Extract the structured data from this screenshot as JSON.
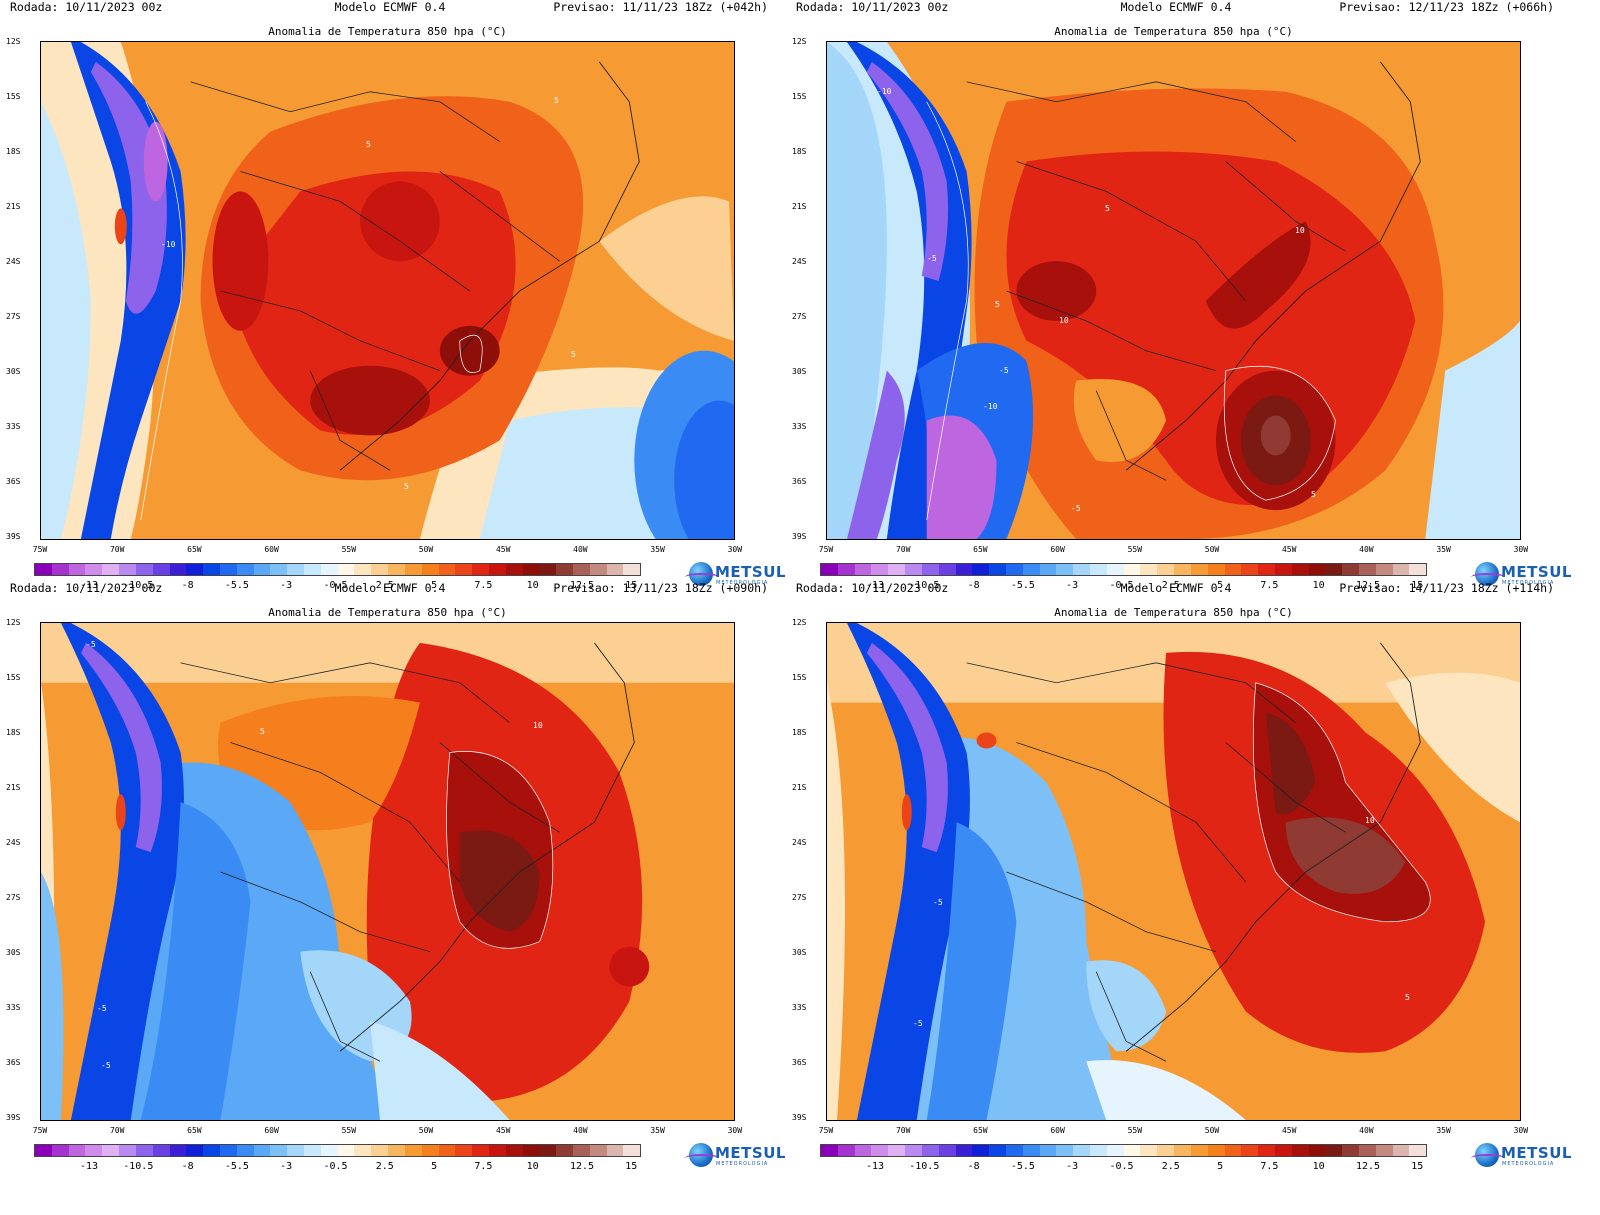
{
  "colors": {
    "scale": [
      "#8a00b8",
      "#a433cf",
      "#bd66e0",
      "#cf8ceb",
      "#dfb0f3",
      "#b98af2",
      "#8d63eb",
      "#6a3fe4",
      "#3a1fd6",
      "#1020d8",
      "#0a46e6",
      "#1f6af0",
      "#3a8cf4",
      "#5aa8f6",
      "#7dc0f7",
      "#a4d6fa",
      "#c8e8fb",
      "#e6f4fd",
      "#fff7e8",
      "#fde6bf",
      "#fbd092",
      "#f8b560",
      "#f69a34",
      "#f47f1c",
      "#f0621a",
      "#ea4418",
      "#e12514",
      "#c91510",
      "#a8100c",
      "#8e0f0a",
      "#7a1a12",
      "#8f3a32",
      "#a96058",
      "#c48a82",
      "#dcb6ae",
      "#f3e0da"
    ]
  },
  "colorbar_labels": [
    "-13",
    "-10.5",
    "-8",
    "-5.5",
    "-3",
    "-0.5",
    "2.5",
    "5",
    "7.5",
    "10",
    "12.5",
    "15"
  ],
  "latitude_labels": [
    "12S",
    "15S",
    "18S",
    "21S",
    "24S",
    "27S",
    "30S",
    "33S",
    "36S",
    "39S"
  ],
  "longitude_labels": [
    "75W",
    "70W",
    "65W",
    "60W",
    "55W",
    "50W",
    "45W",
    "40W",
    "35W",
    "30W"
  ],
  "logo": {
    "name": "METSUL",
    "tagline": "METEOROLOGIA"
  },
  "panels": [
    {
      "run": "Rodada: 10/11/2023 00z",
      "model": "Modelo ECMWF 0.4",
      "forecast": "Previsao: 11/11/23 18Zz (+042h)",
      "title": "Anomalia de Temperatura 850 hpa (°C)",
      "contour_labels": [
        "-10",
        "5",
        "5",
        "5",
        "5"
      ]
    },
    {
      "run": "Rodada: 10/11/2023 00z",
      "model": "Modelo ECMWF 0.4",
      "forecast": "Previsao: 12/11/23 18Zz (+066h)",
      "title": "Anomalia de Temperatura 850 hpa (°C)",
      "contour_labels": [
        "-10",
        "-5",
        "5",
        "5",
        "10",
        "10",
        "-5",
        "-10",
        "-5",
        "5"
      ]
    },
    {
      "run": "Rodada: 10/11/2023 00z",
      "model": "Modelo ECMWF 0.4",
      "forecast": "Previsao: 13/11/23 18Zz (+090h)",
      "title": "Anomalia de Temperatura 850 hpa (°C)",
      "contour_labels": [
        "-5",
        "5",
        "10",
        "-5",
        "-5"
      ]
    },
    {
      "run": "Rodada: 10/11/2023 00z",
      "model": "Modelo ECMWF 0.4",
      "forecast": "Previsao: 14/11/23 18Zz (+114h)",
      "title": "Anomalia de Temperatura 850 hpa (°C)",
      "contour_labels": [
        "10",
        "-5",
        "-5",
        "5"
      ]
    }
  ]
}
